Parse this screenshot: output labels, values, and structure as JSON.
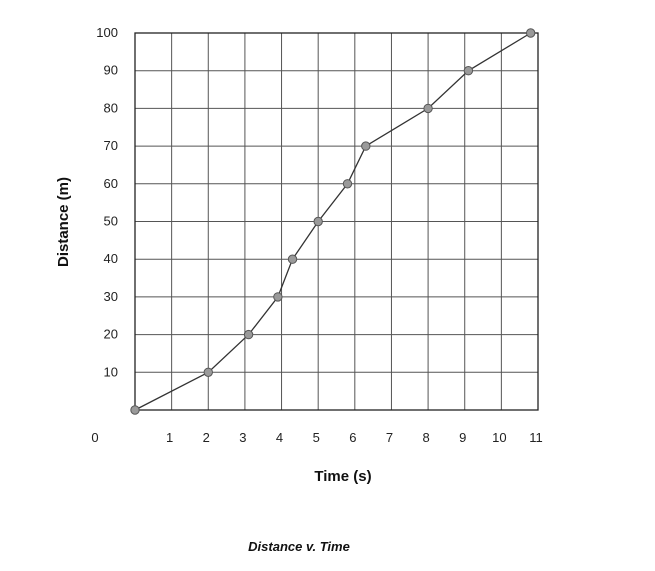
{
  "chart_data": {
    "type": "line",
    "title": "Distance v. Time",
    "xlabel": "Time (s)",
    "ylabel": "Distance (m)",
    "xlim": [
      0,
      11
    ],
    "ylim": [
      0,
      100
    ],
    "x_tick_labels": [
      "0",
      "1",
      "2",
      "3",
      "4",
      "5",
      "6",
      "7",
      "8",
      "9",
      "10",
      "11"
    ],
    "y_tick_labels": [
      "10",
      "20",
      "30",
      "40",
      "50",
      "60",
      "70",
      "80",
      "90",
      "100"
    ],
    "grid": true,
    "series": [
      {
        "x": [
          0,
          2,
          3.1,
          3.9,
          4.3,
          5,
          5.8,
          6.3,
          8,
          9.1,
          10.8
        ],
        "y": [
          0,
          10,
          20,
          30,
          40,
          50,
          60,
          70,
          80,
          90,
          100
        ]
      }
    ],
    "colors": {
      "line": "#333333",
      "marker": "#9a9a9a",
      "grid": "#555555"
    }
  }
}
